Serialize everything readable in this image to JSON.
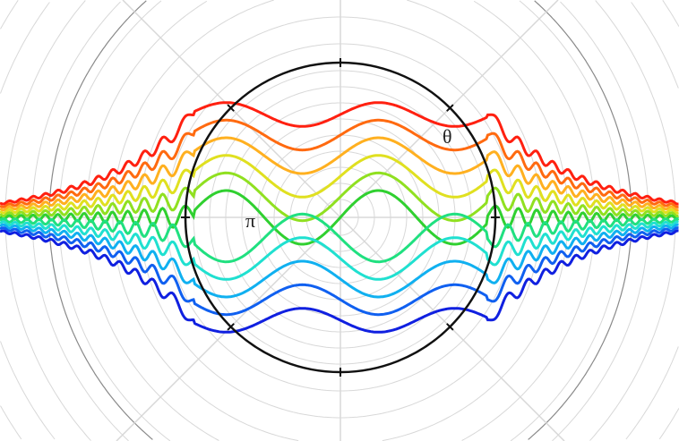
{
  "labels": {
    "pi": "π",
    "theta": "θ"
  },
  "curve_colors": [
    "#ff2010",
    "#ff6a10",
    "#ffb020",
    "#e0e020",
    "#90e020",
    "#30d030",
    "#20e080",
    "#20e0d0",
    "#10b0f0",
    "#1060f0",
    "#1020e0"
  ],
  "grid_color": "#d8d8d8",
  "outer_circle_color": "#8a8a8a",
  "main_circle_color": "#111111"
}
